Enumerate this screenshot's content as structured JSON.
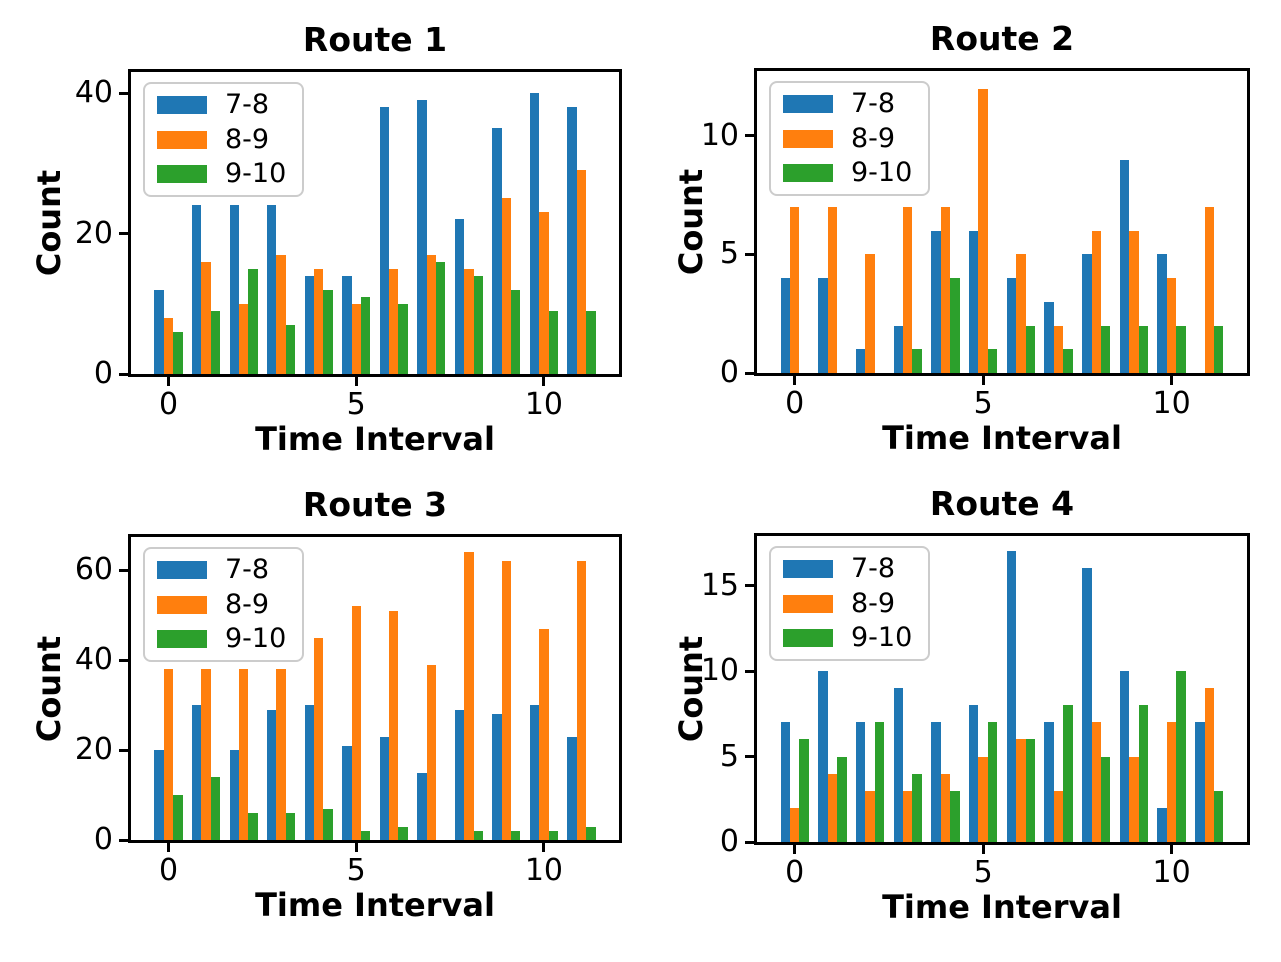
{
  "figure": {
    "background": "#ffffff",
    "series_labels": [
      "7-8",
      "8-9",
      "9-10"
    ],
    "series_colors": [
      "#1f77b4",
      "#ff7f0e",
      "#2ca02c"
    ]
  },
  "chart_data": [
    {
      "type": "bar",
      "title": "Route 1",
      "xlabel": "Time Interval",
      "ylabel": "Count",
      "categories": [
        0,
        1,
        2,
        3,
        4,
        5,
        6,
        7,
        8,
        9,
        10,
        11
      ],
      "series": [
        {
          "name": "7-8",
          "color": "#1f77b4",
          "values": [
            12,
            24,
            24,
            24,
            14,
            14,
            38,
            39,
            22,
            35,
            40,
            38
          ]
        },
        {
          "name": "8-9",
          "color": "#ff7f0e",
          "values": [
            8,
            16,
            10,
            17,
            15,
            10,
            15,
            17,
            15,
            25,
            23,
            29
          ]
        },
        {
          "name": "9-10",
          "color": "#2ca02c",
          "values": [
            6,
            9,
            15,
            7,
            12,
            11,
            10,
            16,
            14,
            12,
            9,
            9
          ]
        }
      ],
      "xticks": [
        0,
        5,
        10
      ],
      "yticks": [
        0,
        20,
        40
      ],
      "xlim": [
        -1,
        12
      ],
      "ylim": [
        0,
        43
      ],
      "legend_position": "upper left",
      "grid": false
    },
    {
      "type": "bar",
      "title": "Route 2",
      "xlabel": "Time Interval",
      "ylabel": "Count",
      "categories": [
        0,
        1,
        2,
        3,
        4,
        5,
        6,
        7,
        8,
        9,
        10,
        11
      ],
      "series": [
        {
          "name": "7-8",
          "color": "#1f77b4",
          "values": [
            4,
            4,
            1,
            2,
            6,
            6,
            4,
            3,
            5,
            9,
            5,
            0
          ]
        },
        {
          "name": "8-9",
          "color": "#ff7f0e",
          "values": [
            7,
            7,
            5,
            7,
            7,
            12,
            5,
            2,
            6,
            6,
            4,
            7
          ]
        },
        {
          "name": "9-10",
          "color": "#2ca02c",
          "values": [
            0,
            0,
            0,
            1,
            4,
            1,
            2,
            1,
            2,
            2,
            2,
            2
          ]
        }
      ],
      "xticks": [
        0,
        5,
        10
      ],
      "yticks": [
        0,
        5,
        10
      ],
      "xlim": [
        -1,
        12
      ],
      "ylim": [
        0,
        12.74
      ],
      "legend_position": "upper left",
      "grid": false
    },
    {
      "type": "bar",
      "title": "Route 3",
      "xlabel": "Time Interval",
      "ylabel": "Count",
      "categories": [
        0,
        1,
        2,
        3,
        4,
        5,
        6,
        7,
        8,
        9,
        10,
        11
      ],
      "series": [
        {
          "name": "7-8",
          "color": "#1f77b4",
          "values": [
            20,
            30,
            20,
            29,
            30,
            21,
            23,
            15,
            29,
            28,
            30,
            23
          ]
        },
        {
          "name": "8-9",
          "color": "#ff7f0e",
          "values": [
            38,
            38,
            38,
            38,
            45,
            52,
            51,
            39,
            64,
            62,
            47,
            62
          ]
        },
        {
          "name": "9-10",
          "color": "#2ca02c",
          "values": [
            10,
            14,
            6,
            6,
            7,
            2,
            3,
            0,
            2,
            2,
            2,
            3
          ]
        }
      ],
      "xticks": [
        0,
        5,
        10
      ],
      "yticks": [
        0,
        20,
        40,
        60
      ],
      "xlim": [
        -1,
        12
      ],
      "ylim": [
        0,
        67.4
      ],
      "legend_position": "upper left",
      "grid": false
    },
    {
      "type": "bar",
      "title": "Route 4",
      "xlabel": "Time Interval",
      "ylabel": "Count",
      "categories": [
        0,
        1,
        2,
        3,
        4,
        5,
        6,
        7,
        8,
        9,
        10,
        11
      ],
      "series": [
        {
          "name": "7-8",
          "color": "#1f77b4",
          "values": [
            7,
            10,
            7,
            9,
            7,
            8,
            17,
            7,
            16,
            10,
            2,
            7
          ]
        },
        {
          "name": "8-9",
          "color": "#ff7f0e",
          "values": [
            2,
            4,
            3,
            3,
            4,
            5,
            6,
            3,
            7,
            5,
            7,
            9
          ]
        },
        {
          "name": "9-10",
          "color": "#2ca02c",
          "values": [
            6,
            5,
            7,
            4,
            3,
            7,
            6,
            8,
            5,
            8,
            10,
            3
          ]
        }
      ],
      "xticks": [
        0,
        5,
        10
      ],
      "yticks": [
        0,
        5,
        10,
        15
      ],
      "xlim": [
        -1,
        12
      ],
      "ylim": [
        0,
        17.9
      ],
      "legend_position": "upper left",
      "grid": false
    }
  ]
}
